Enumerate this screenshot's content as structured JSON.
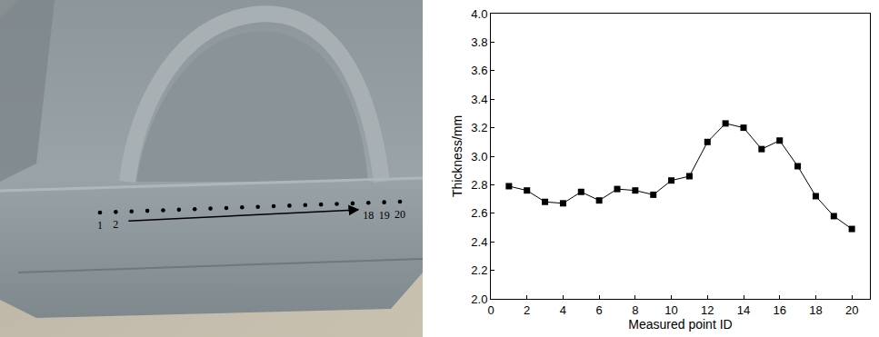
{
  "chart_data": {
    "type": "line",
    "x": [
      1,
      2,
      3,
      4,
      5,
      6,
      7,
      8,
      9,
      10,
      11,
      12,
      13,
      14,
      15,
      16,
      17,
      18,
      19,
      20
    ],
    "values": [
      2.79,
      2.76,
      2.68,
      2.67,
      2.75,
      2.69,
      2.77,
      2.76,
      2.73,
      2.83,
      2.86,
      3.1,
      3.23,
      3.2,
      3.05,
      3.11,
      2.93,
      2.72,
      2.58,
      2.49
    ],
    "color": "#000000",
    "marker": "square",
    "line_style": "solid",
    "xlabel": "Measured point ID",
    "ylabel": "Thickness/mm",
    "xlim": [
      0,
      21
    ],
    "xticks": [
      0,
      2,
      4,
      6,
      8,
      10,
      12,
      14,
      16,
      18,
      20
    ],
    "ylim": [
      2.0,
      4.0
    ],
    "yticks": [
      {
        "value": 2,
        "label": "2.0"
      },
      2.2,
      2.4,
      2.6,
      2.8,
      {
        "value": 3,
        "label": "3.0"
      },
      3.2,
      3.4,
      3.6,
      3.8,
      {
        "value": 4,
        "label": "4.0"
      }
    ],
    "grid": false
  },
  "photo": {
    "point_labels": [
      "1",
      "2",
      null,
      null,
      null,
      null,
      null,
      null,
      null,
      null,
      null,
      null,
      null,
      null,
      null,
      null,
      null,
      "18",
      "19",
      "20"
    ]
  }
}
